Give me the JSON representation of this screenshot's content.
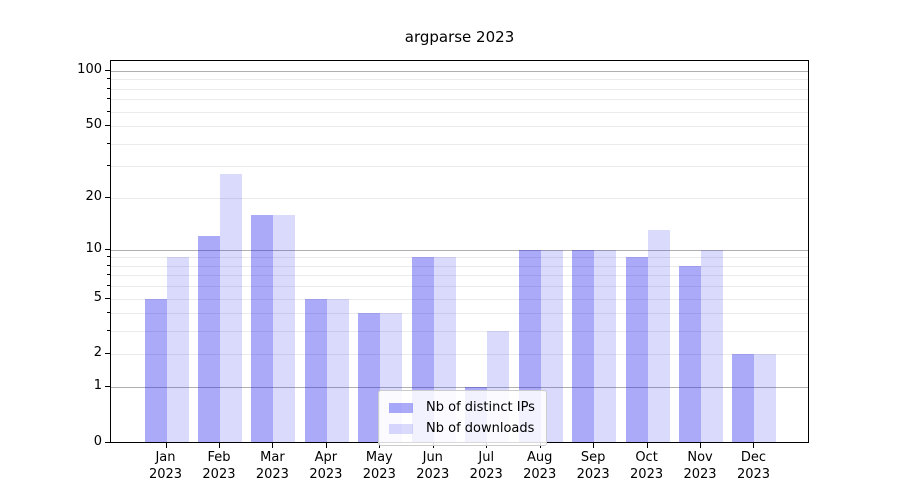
{
  "chart_data": {
    "type": "bar",
    "title": "argparse 2023",
    "categories": [
      "Jan",
      "Feb",
      "Mar",
      "Apr",
      "May",
      "Jun",
      "Jul",
      "Aug",
      "Sep",
      "Oct",
      "Nov",
      "Dec"
    ],
    "category_year": "2023",
    "series": [
      {
        "name": "Nb of distinct IPs",
        "color": "rgba(25,25,240,0.37)",
        "values": [
          5,
          12,
          16,
          5,
          4,
          9,
          1,
          10,
          10,
          9,
          8,
          2
        ]
      },
      {
        "name": "Nb of downloads",
        "color": "rgba(25,25,240,0.16)",
        "values": [
          9,
          27,
          16,
          5,
          4,
          9,
          3,
          10,
          10,
          13,
          10,
          2
        ]
      }
    ],
    "y_scale": "log(1+v)",
    "ylim": [
      0,
      115
    ],
    "y_ticks_labeled": [
      0,
      1,
      2,
      5,
      10,
      20,
      50,
      100
    ],
    "y_ticks_minor": [
      3,
      4,
      6,
      7,
      8,
      9,
      30,
      40,
      60,
      70,
      80,
      90
    ],
    "y_major_gridlines": [
      1,
      10,
      100
    ],
    "grid": true,
    "legend_position": "lower center",
    "colors": {
      "major_gridline": "#b0b0b0",
      "minor_gridline": "#ebebeb",
      "axis": "#000000",
      "background": "#ffffff"
    }
  }
}
